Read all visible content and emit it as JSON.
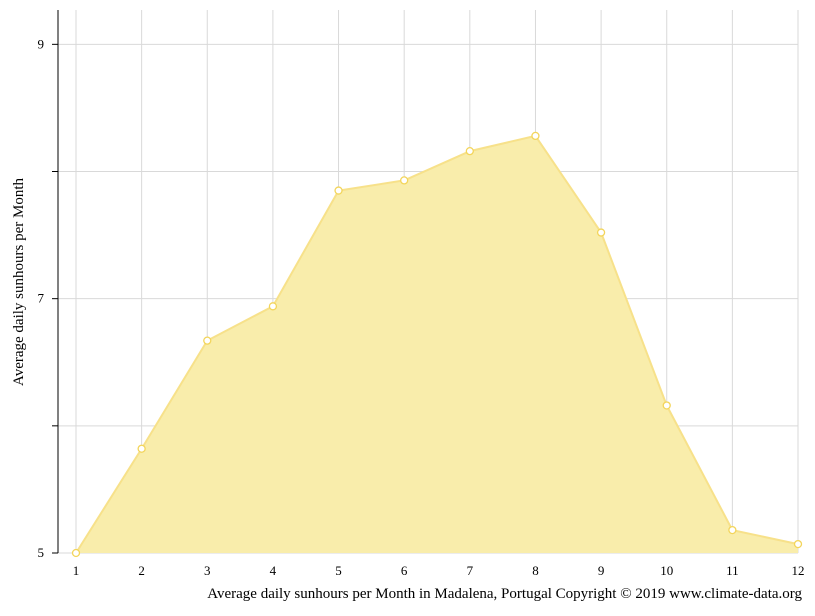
{
  "chart_data": {
    "type": "area",
    "title": "",
    "xlabel": "",
    "ylabel": "Average daily sunhours per Month",
    "x": [
      1,
      2,
      3,
      4,
      5,
      6,
      7,
      8,
      9,
      10,
      11,
      12
    ],
    "series": [
      {
        "values": [
          5.0,
          5.82,
          6.67,
          6.94,
          7.85,
          7.93,
          8.16,
          8.28,
          7.52,
          6.16,
          5.18,
          5.07
        ]
      }
    ],
    "ylim": [
      5,
      9.27
    ],
    "xlim": [
      1,
      12
    ],
    "y_ticks": [
      5,
      7,
      9
    ],
    "y_tick_labels": [
      "5",
      "7",
      "9"
    ],
    "x_tick_labels": [
      "1",
      "2",
      "3",
      "4",
      "5",
      "6",
      "7",
      "8",
      "9",
      "10",
      "11",
      "12"
    ],
    "grid": true,
    "legend": "none",
    "colors": {
      "fill": "#f9edab",
      "line": "#f7e18a",
      "marker_edge": "#f3d55b",
      "grid": "#d9d9d9",
      "axis": "#000000"
    },
    "caption": "Average daily sunhours per Month in Madalena, Portugal Copyright © 2019 www.climate-data.org"
  }
}
